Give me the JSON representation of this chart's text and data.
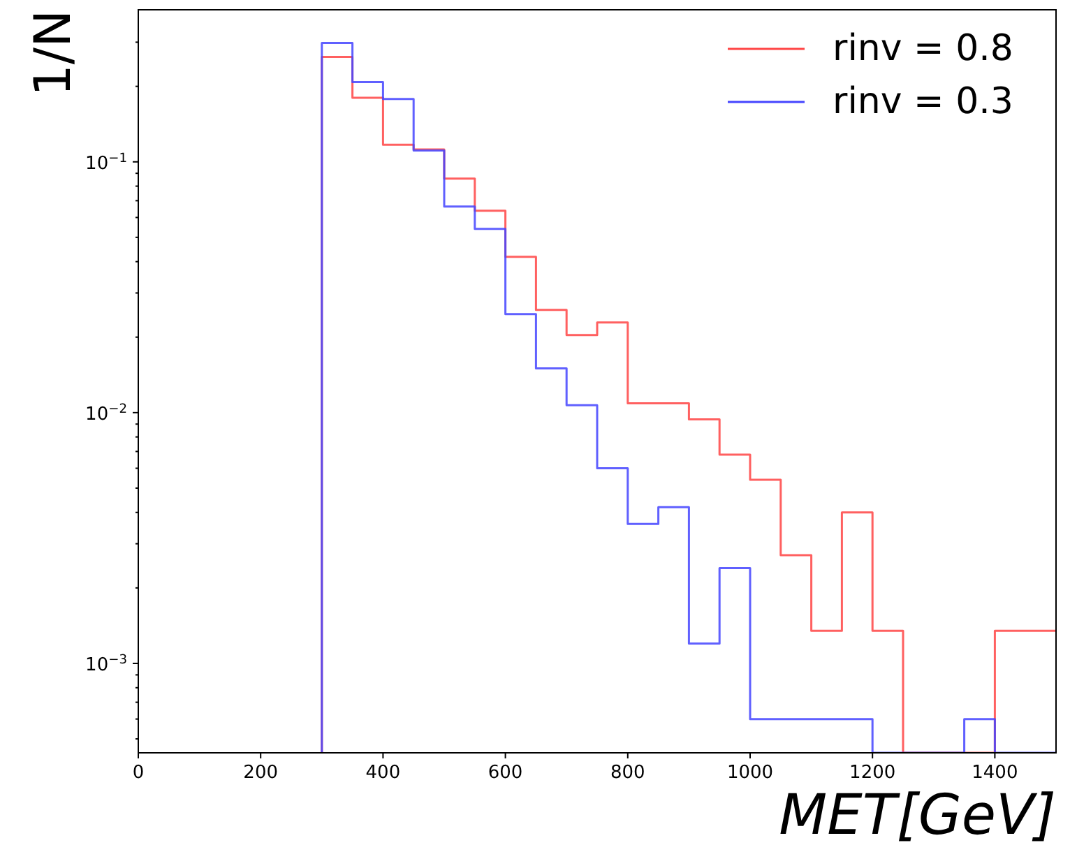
{
  "chart_data": {
    "type": "histogram",
    "xlabel": "MET[GeV]",
    "ylabel": "1/N",
    "log": "y",
    "legend": "top right",
    "grid": false,
    "bins": [
      300,
      350,
      400,
      450,
      500,
      550,
      600,
      650,
      700,
      750,
      800,
      850,
      900,
      950,
      1000,
      1050,
      1100,
      1150,
      1200,
      1250,
      1300,
      1350,
      1400,
      1450,
      1500
    ],
    "series": [
      {
        "name": "rinv = 0.8",
        "color": "#ff4444",
        "values": [
          0.262,
          0.18,
          0.117,
          0.112,
          0.0858,
          0.0638,
          0.0418,
          0.0257,
          0.0204,
          0.0229,
          0.0109,
          0.0109,
          0.0094,
          0.0068,
          0.0054,
          0.0027,
          0.00135,
          0.004,
          0.00135,
          null,
          null,
          null,
          0.00135,
          0.00135
        ]
      },
      {
        "name": "rinv = 0.3",
        "color": "#4444ff",
        "values": [
          0.298,
          0.208,
          0.178,
          0.111,
          0.0663,
          0.054,
          0.0247,
          0.015,
          0.0107,
          0.006,
          0.0036,
          0.0042,
          0.0012,
          0.0024,
          0.0006,
          0.0006,
          0.0006,
          0.0006,
          null,
          null,
          null,
          0.0006,
          null,
          null
        ]
      }
    ],
    "xlim": [
      0,
      1500
    ],
    "xticks": [
      0,
      200,
      400,
      600,
      800,
      1000,
      1200,
      1400
    ],
    "ylim": [
      0.00044,
      0.404
    ],
    "yticks": [
      {
        "value": 0.0005,
        "label": null
      },
      {
        "value": 0.0006,
        "label": null
      },
      {
        "value": 0.0007,
        "label": null
      },
      {
        "value": 0.0008,
        "label": null
      },
      {
        "value": 0.0009,
        "label": null
      },
      {
        "value": 0.001,
        "label": "10$^{−3}$"
      },
      {
        "value": 0.002,
        "label": null
      },
      {
        "value": 0.003,
        "label": null
      },
      {
        "value": 0.004,
        "label": null
      },
      {
        "value": 0.005,
        "label": null
      },
      {
        "value": 0.006,
        "label": null
      },
      {
        "value": 0.007,
        "label": null
      },
      {
        "value": 0.008,
        "label": null
      },
      {
        "value": 0.009,
        "label": null
      },
      {
        "value": 0.01,
        "label": "10$^{−2}$"
      },
      {
        "value": 0.02,
        "label": null
      },
      {
        "value": 0.03,
        "label": null
      },
      {
        "value": 0.04,
        "label": null
      },
      {
        "value": 0.05,
        "label": null
      },
      {
        "value": 0.06,
        "label": null
      },
      {
        "value": 0.07,
        "label": null
      },
      {
        "value": 0.08,
        "label": null
      },
      {
        "value": 0.09,
        "label": null
      },
      {
        "value": 0.1,
        "label": "10$^{−1}$"
      },
      {
        "value": 0.2,
        "label": null
      },
      {
        "value": 0.3,
        "label": null
      }
    ]
  }
}
